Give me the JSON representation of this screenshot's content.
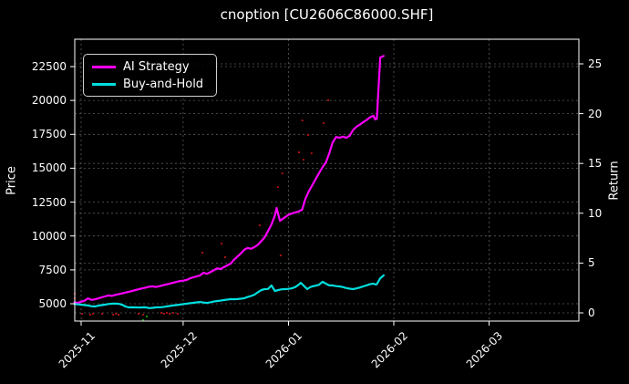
{
  "colors": {
    "background": "#000000",
    "text": "#ffffff",
    "grid": "#5c5c5c",
    "spine": "#ffffff",
    "ai_strategy": "#ff00ff",
    "buy_and_hold": "#00dede",
    "red_marker": "#aa1111",
    "green_marker": "#119911"
  },
  "legend": {
    "items": [
      {
        "label": "AI Strategy",
        "color_key": "ai_strategy"
      },
      {
        "label": "Buy-and-Hold",
        "color_key": "buy_and_hold"
      }
    ]
  },
  "chart_data": {
    "type": "line",
    "title": "cnoption [CU2606C86000.SHF]",
    "x_axis": {
      "unit": "days since 2025-11-01",
      "tick_days": [
        0,
        30,
        61,
        92,
        120
      ],
      "tick_labels": [
        "2025-11",
        "2025-12",
        "2026-01",
        "2026-02",
        "2026-03"
      ],
      "xlim_days": [
        -1.88,
        146.43
      ]
    },
    "y_left": {
      "label": "Price",
      "ticks": [
        5000,
        7500,
        10000,
        12500,
        15000,
        17500,
        20000,
        22500
      ],
      "ylim": [
        3721,
        24518
      ]
    },
    "y_right": {
      "label": "Return",
      "ticks": [
        0,
        5,
        10,
        15,
        20,
        25
      ],
      "ylim": [
        -0.82,
        27.47
      ]
    },
    "grid": true,
    "legend_position": "upper-left",
    "series": [
      {
        "name": "AI Strategy",
        "axis": "left",
        "color_key": "ai_strategy",
        "points": [
          [
            -2,
            5100
          ],
          [
            -1,
            5060
          ],
          [
            0,
            5150
          ],
          [
            1,
            5220
          ],
          [
            2,
            5400
          ],
          [
            3,
            5280
          ],
          [
            4,
            5320
          ],
          [
            5,
            5390
          ],
          [
            6,
            5470
          ],
          [
            7,
            5540
          ],
          [
            8,
            5610
          ],
          [
            9,
            5580
          ],
          [
            10,
            5650
          ],
          [
            11,
            5700
          ],
          [
            12,
            5760
          ],
          [
            13,
            5820
          ],
          [
            14,
            5880
          ],
          [
            15,
            5940
          ],
          [
            16,
            6010
          ],
          [
            17,
            6080
          ],
          [
            18,
            6130
          ],
          [
            19,
            6190
          ],
          [
            20,
            6260
          ],
          [
            21,
            6280
          ],
          [
            22,
            6240
          ],
          [
            23,
            6290
          ],
          [
            24,
            6360
          ],
          [
            25,
            6420
          ],
          [
            26,
            6480
          ],
          [
            27,
            6540
          ],
          [
            28,
            6610
          ],
          [
            29,
            6670
          ],
          [
            30,
            6700
          ],
          [
            31,
            6750
          ],
          [
            32,
            6870
          ],
          [
            33,
            6950
          ],
          [
            34,
            7020
          ],
          [
            35,
            7090
          ],
          [
            36,
            7290
          ],
          [
            37,
            7210
          ],
          [
            38,
            7330
          ],
          [
            39,
            7460
          ],
          [
            40,
            7610
          ],
          [
            41,
            7560
          ],
          [
            42,
            7700
          ],
          [
            43,
            7830
          ],
          [
            44,
            7960
          ],
          [
            45,
            8250
          ],
          [
            46,
            8480
          ],
          [
            47,
            8720
          ],
          [
            48,
            8990
          ],
          [
            49,
            9110
          ],
          [
            50,
            9060
          ],
          [
            51,
            9180
          ],
          [
            52,
            9350
          ],
          [
            53,
            9620
          ],
          [
            54,
            9910
          ],
          [
            55,
            10380
          ],
          [
            56,
            10850
          ],
          [
            57,
            11500
          ],
          [
            57.5,
            12070
          ],
          [
            58.5,
            11120
          ],
          [
            59.5,
            11300
          ],
          [
            61,
            11560
          ],
          [
            62,
            11660
          ],
          [
            63,
            11740
          ],
          [
            64,
            11810
          ],
          [
            65,
            11930
          ],
          [
            66,
            12750
          ],
          [
            67,
            13300
          ],
          [
            68,
            13750
          ],
          [
            69,
            14200
          ],
          [
            70,
            14640
          ],
          [
            71,
            15060
          ],
          [
            72,
            15430
          ],
          [
            73,
            16100
          ],
          [
            74,
            16900
          ],
          [
            75,
            17300
          ],
          [
            76,
            17240
          ],
          [
            77,
            17330
          ],
          [
            78,
            17240
          ],
          [
            79,
            17400
          ],
          [
            80,
            17820
          ],
          [
            81,
            18060
          ],
          [
            82,
            18220
          ],
          [
            83,
            18400
          ],
          [
            84,
            18560
          ],
          [
            85,
            18760
          ],
          [
            86,
            18870
          ],
          [
            86.5,
            18600
          ],
          [
            87,
            18650
          ],
          [
            88,
            23170
          ],
          [
            89,
            23280
          ]
        ]
      },
      {
        "name": "Buy-and-Hold",
        "axis": "left",
        "color_key": "buy_and_hold",
        "points": [
          [
            -2,
            4980
          ],
          [
            -1,
            4950
          ],
          [
            0,
            4930
          ],
          [
            1,
            4900
          ],
          [
            2,
            4870
          ],
          [
            3,
            4820
          ],
          [
            4,
            4800
          ],
          [
            5,
            4850
          ],
          [
            6,
            4900
          ],
          [
            7,
            4930
          ],
          [
            8,
            4980
          ],
          [
            9,
            5000
          ],
          [
            10,
            5010
          ],
          [
            11,
            4990
          ],
          [
            12,
            4930
          ],
          [
            13,
            4800
          ],
          [
            14,
            4730
          ],
          [
            15,
            4740
          ],
          [
            16,
            4730
          ],
          [
            17,
            4720
          ],
          [
            18,
            4730
          ],
          [
            19,
            4740
          ],
          [
            20,
            4680
          ],
          [
            21,
            4700
          ],
          [
            22,
            4730
          ],
          [
            23,
            4740
          ],
          [
            24,
            4750
          ],
          [
            25,
            4790
          ],
          [
            26,
            4830
          ],
          [
            27,
            4870
          ],
          [
            28,
            4900
          ],
          [
            29,
            4930
          ],
          [
            30,
            4970
          ],
          [
            31,
            5000
          ],
          [
            32,
            5040
          ],
          [
            33,
            5070
          ],
          [
            34,
            5100
          ],
          [
            35,
            5130
          ],
          [
            36,
            5090
          ],
          [
            37,
            5060
          ],
          [
            38,
            5110
          ],
          [
            39,
            5160
          ],
          [
            40,
            5200
          ],
          [
            41,
            5230
          ],
          [
            42,
            5270
          ],
          [
            43,
            5300
          ],
          [
            44,
            5340
          ],
          [
            45,
            5330
          ],
          [
            46,
            5340
          ],
          [
            47,
            5370
          ],
          [
            48,
            5410
          ],
          [
            49,
            5500
          ],
          [
            50,
            5570
          ],
          [
            51,
            5670
          ],
          [
            52,
            5850
          ],
          [
            53,
            6010
          ],
          [
            54,
            6080
          ],
          [
            55,
            6090
          ],
          [
            56,
            6350
          ],
          [
            57,
            5940
          ],
          [
            58,
            6010
          ],
          [
            59,
            6060
          ],
          [
            60,
            6080
          ],
          [
            61,
            6100
          ],
          [
            62,
            6140
          ],
          [
            63,
            6230
          ],
          [
            64,
            6400
          ],
          [
            64.6,
            6550
          ],
          [
            65.4,
            6350
          ],
          [
            66.5,
            6080
          ],
          [
            67.3,
            6210
          ],
          [
            68,
            6280
          ],
          [
            69,
            6330
          ],
          [
            70,
            6400
          ],
          [
            71,
            6620
          ],
          [
            72,
            6480
          ],
          [
            73,
            6350
          ],
          [
            74,
            6350
          ],
          [
            75,
            6300
          ],
          [
            76,
            6280
          ],
          [
            77,
            6230
          ],
          [
            78,
            6160
          ],
          [
            79,
            6110
          ],
          [
            80,
            6080
          ],
          [
            81,
            6130
          ],
          [
            82,
            6200
          ],
          [
            83,
            6280
          ],
          [
            84,
            6360
          ],
          [
            85,
            6440
          ],
          [
            86,
            6480
          ],
          [
            86.6,
            6420
          ],
          [
            87,
            6450
          ],
          [
            88,
            6880
          ],
          [
            89,
            7090
          ]
        ]
      }
    ],
    "markers": [
      {
        "name": "red-dots",
        "color_key": "red_marker",
        "points": [
          [
            -1.9,
            5740
          ],
          [
            -1.9,
            5400
          ],
          [
            0.3,
            4260
          ],
          [
            2.7,
            4190
          ],
          [
            3.5,
            4260
          ],
          [
            6.2,
            4260
          ],
          [
            9.4,
            4190
          ],
          [
            10.2,
            4260
          ],
          [
            11,
            4190
          ],
          [
            16.9,
            4260
          ],
          [
            18.2,
            4190
          ],
          [
            23.6,
            4330
          ],
          [
            24.4,
            4260
          ],
          [
            25.2,
            4330
          ],
          [
            26,
            4260
          ],
          [
            27.1,
            4330
          ],
          [
            28.4,
            4260
          ],
          [
            35.7,
            8770
          ],
          [
            41.3,
            9440
          ],
          [
            42.4,
            8430
          ],
          [
            52.5,
            10790
          ],
          [
            57.9,
            13610
          ],
          [
            58.7,
            8570
          ],
          [
            59.2,
            14620
          ],
          [
            64.1,
            16170
          ],
          [
            65.1,
            18530
          ],
          [
            65.4,
            15630
          ],
          [
            66.8,
            17450
          ],
          [
            67.8,
            16100
          ],
          [
            71.3,
            18330
          ],
          [
            72.7,
            20010
          ]
        ]
      },
      {
        "name": "green-dots",
        "color_key": "green_marker",
        "points": [
          [
            18.2,
            3800
          ],
          [
            19.3,
            4060
          ]
        ]
      }
    ]
  }
}
